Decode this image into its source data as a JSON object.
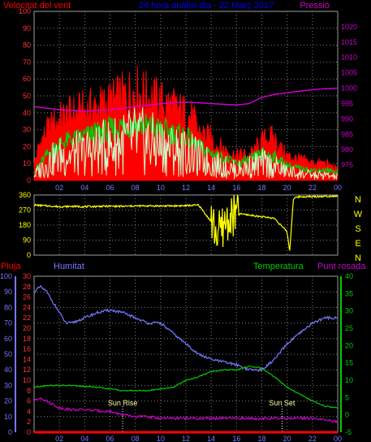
{
  "colors": {
    "wind": "#ff0000",
    "gust": "#ff0000",
    "wind_avg": "#00cc00",
    "wind_low": "#ccffcc",
    "pressure": "#cc00cc",
    "direction": "#ffff00",
    "humidity": "#7777ff",
    "temperature": "#00cc00",
    "dewpoint": "#cc00cc",
    "rain": "#ff0000",
    "grid": "#808080",
    "sun": "#ffff99",
    "title": "#0000ff"
  },
  "chart_data": [
    {
      "type": "line",
      "title": "24 hora anàlisi dia - 22 Març 2017",
      "left_label": "Velocitat del vent",
      "right_label": "Pressió",
      "x_ticks": [
        "02",
        "04",
        "06",
        "08",
        "10",
        "12",
        "14",
        "16",
        "18",
        "20",
        "22",
        "00"
      ],
      "x_range": [
        0,
        24
      ],
      "y_left": {
        "min": 0,
        "max": 100,
        "ticks": [
          0,
          10,
          20,
          30,
          40,
          50,
          60,
          70,
          80,
          90,
          100
        ]
      },
      "y_right": {
        "min": 970,
        "max": 1025,
        "ticks": [
          975,
          980,
          985,
          990,
          995,
          1000,
          1005,
          1010,
          1015,
          1020
        ]
      },
      "series": [
        {
          "axis": "left",
          "role": "gust",
          "x": [
            0,
            0.5,
            1,
            1.5,
            2,
            3,
            4,
            5,
            6,
            7,
            7.5,
            8,
            9,
            10,
            11,
            12,
            12.5,
            13,
            14,
            14.5,
            15,
            16,
            16.5,
            17,
            17.5,
            18,
            18.5,
            19,
            19.5,
            20,
            21,
            22,
            23,
            23.5,
            24
          ],
          "y": [
            10,
            22,
            28,
            32,
            35,
            38,
            40,
            42,
            45,
            48,
            50,
            52,
            48,
            45,
            42,
            38,
            36,
            28,
            24,
            20,
            18,
            14,
            15,
            14,
            18,
            22,
            25,
            24,
            18,
            14,
            12,
            10,
            10,
            8,
            6
          ]
        },
        {
          "axis": "left",
          "role": "average",
          "x": [
            0,
            1,
            2,
            3,
            4,
            5,
            6,
            7,
            8,
            9,
            10,
            11,
            12,
            13,
            14,
            15,
            16,
            17,
            18,
            19,
            20,
            21,
            22,
            23,
            24
          ],
          "y": [
            5,
            15,
            22,
            24,
            26,
            28,
            30,
            32,
            34,
            32,
            30,
            28,
            26,
            20,
            16,
            13,
            10,
            12,
            16,
            14,
            9,
            7,
            6,
            6,
            5
          ]
        },
        {
          "axis": "left",
          "role": "low",
          "x": [
            0,
            1,
            2,
            3,
            4,
            5,
            6,
            7,
            8,
            9,
            10,
            11,
            12,
            13,
            14,
            15,
            16,
            17,
            18,
            19,
            20,
            21,
            22,
            23,
            24
          ],
          "y": [
            3,
            10,
            14,
            15,
            16,
            18,
            20,
            22,
            24,
            22,
            20,
            18,
            16,
            13,
            10,
            8,
            6,
            8,
            10,
            8,
            5,
            4,
            3,
            3,
            2
          ]
        },
        {
          "axis": "right",
          "role": "pressure",
          "x": [
            0,
            2,
            4,
            6,
            8,
            10,
            12,
            14,
            16,
            17,
            18,
            19,
            20,
            21,
            22,
            23,
            24
          ],
          "y": [
            994,
            993,
            992.5,
            993,
            994,
            995,
            995.5,
            995,
            994.5,
            995,
            997,
            998,
            998.5,
            999,
            999.5,
            999.8,
            1000
          ]
        }
      ]
    },
    {
      "type": "scatter",
      "right_labels": [
        "N",
        "W",
        "S",
        "E",
        "N"
      ],
      "y": {
        "min": 0,
        "max": 360,
        "ticks": [
          0,
          90,
          180,
          270,
          360
        ]
      },
      "x_range": [
        0,
        24
      ],
      "series": [
        {
          "role": "direction",
          "x": [
            0,
            1,
            2,
            3,
            4,
            5,
            6,
            7,
            8,
            9,
            10,
            11,
            12,
            13,
            14,
            14.5,
            15,
            15.5,
            16,
            17,
            18,
            19,
            20,
            20.2,
            20.5,
            21,
            22,
            23,
            24
          ],
          "y": [
            300,
            295,
            290,
            292,
            290,
            292,
            293,
            292,
            294,
            295,
            294,
            295,
            296,
            300,
            200,
            120,
            180,
            220,
            250,
            240,
            230,
            220,
            140,
            20,
            340,
            350,
            350,
            352,
            355
          ]
        }
      ]
    },
    {
      "type": "line",
      "labels": {
        "rain": "Pluja",
        "humidity": "Humitat",
        "temperature": "Temperatura",
        "dewpoint": "Punt rosada"
      },
      "annotations": [
        {
          "text": "Sun Rise",
          "x": 7.0
        },
        {
          "text": "Sun Set",
          "x": 19.6
        }
      ],
      "x_ticks": [
        "02",
        "04",
        "06",
        "08",
        "10",
        "12",
        "14",
        "16",
        "18",
        "20",
        "22",
        "00"
      ],
      "x_range": [
        0,
        24
      ],
      "y_rain": {
        "min": 0,
        "max": 100,
        "ticks": [
          0,
          10,
          20,
          30,
          40,
          50,
          60,
          70,
          80,
          90,
          100
        ]
      },
      "y_humidity": {
        "min": 0,
        "max": 30,
        "ticks": [
          0,
          2,
          4,
          6,
          8,
          10,
          12,
          14,
          16,
          18,
          20,
          22,
          24,
          26,
          28,
          30
        ]
      },
      "y_temp": {
        "min": -5,
        "max": 40,
        "ticks": [
          -5,
          0,
          5,
          10,
          15,
          20,
          25,
          30,
          35,
          40
        ]
      },
      "series": [
        {
          "axis": "humidity",
          "role": "humidity",
          "x": [
            0,
            0.5,
            1,
            1.5,
            2,
            2.5,
            3,
            4,
            5,
            6,
            7,
            8,
            9,
            10,
            11,
            12,
            13,
            14,
            15,
            16,
            17,
            18,
            19,
            20,
            21,
            22,
            23,
            24
          ],
          "y": [
            27,
            28,
            27,
            25,
            23,
            21,
            21,
            22,
            23,
            23.5,
            23,
            22,
            21,
            21,
            19,
            17,
            15,
            14,
            13.5,
            13,
            12,
            12,
            14,
            17,
            19,
            21,
            22,
            22
          ]
        },
        {
          "axis": "temp",
          "role": "temperature",
          "x": [
            0,
            1,
            2,
            3,
            4,
            5,
            6,
            7,
            8,
            9,
            10,
            11,
            12,
            13,
            14,
            15,
            16,
            16.5,
            17,
            18,
            19,
            20,
            21,
            22,
            23,
            24
          ],
          "y": [
            8,
            8.5,
            8.5,
            8.5,
            8.2,
            8,
            7.5,
            7,
            7,
            7,
            7.5,
            8,
            10,
            11,
            12.5,
            13,
            13,
            13.5,
            14,
            13.5,
            11,
            8,
            6,
            4,
            2.5,
            2
          ]
        },
        {
          "axis": "temp",
          "role": "dewpoint",
          "x": [
            0,
            0.5,
            1,
            1.5,
            2,
            3,
            4,
            5,
            6,
            7,
            8,
            9,
            10,
            11,
            12,
            13,
            14,
            15,
            16,
            17,
            18,
            19,
            20,
            21,
            22,
            23,
            24
          ],
          "y": [
            4,
            5,
            4,
            3,
            2,
            1.5,
            1.5,
            1.2,
            1,
            0,
            -0.5,
            -0.5,
            -1,
            -1,
            -1,
            -1,
            -1,
            -1,
            -1,
            -1,
            -1,
            -1,
            -1,
            -1,
            -1,
            -1.5,
            -2
          ]
        },
        {
          "axis": "rain",
          "role": "rain",
          "x": [
            0,
            24
          ],
          "y": [
            0,
            0
          ]
        }
      ]
    }
  ]
}
